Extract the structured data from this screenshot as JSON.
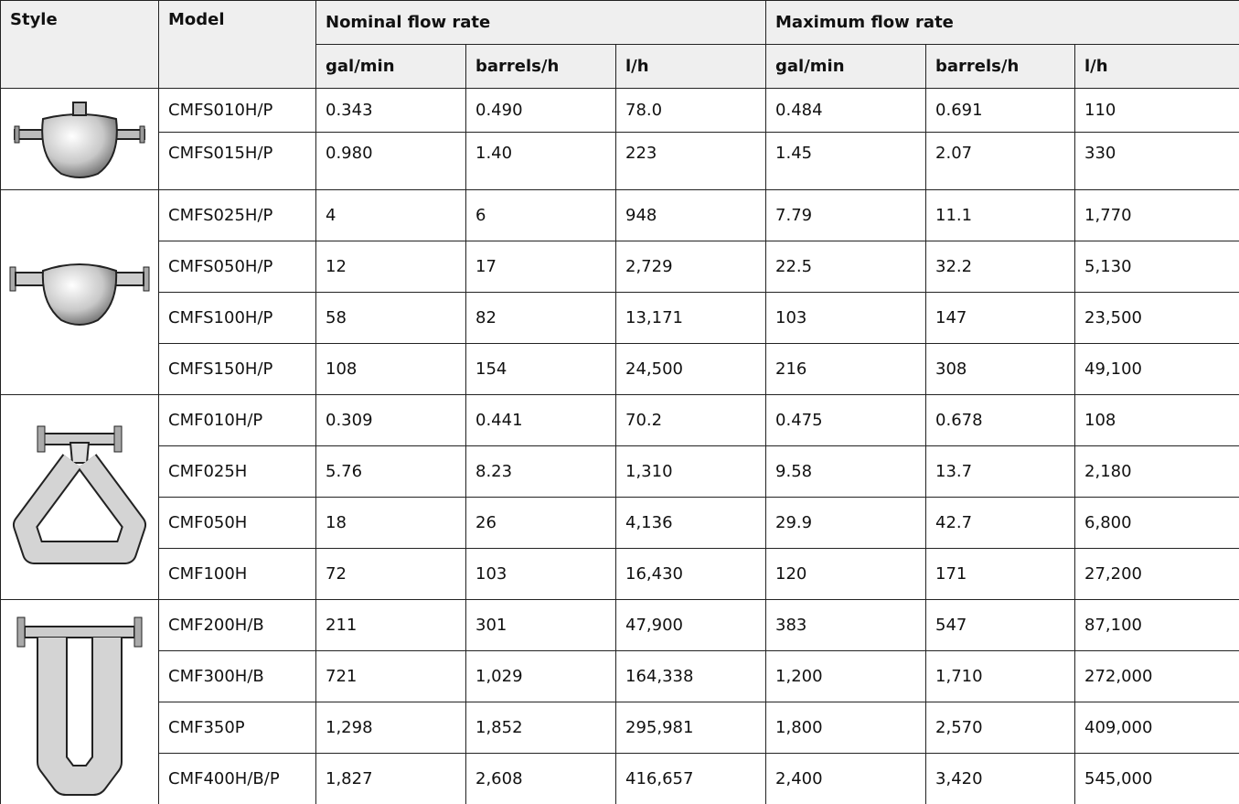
{
  "table": {
    "header": [
      "Style",
      "Model",
      "Nominal flow rate",
      "Maximum flow rate"
    ],
    "units": [
      "gal/min",
      "barrels/h",
      "l/h",
      "gal/min",
      "barrels/h",
      "l/h"
    ],
    "groups": [
      {
        "rows": [
          [
            "CMFS010H/P",
            "0.343",
            "0.490",
            "78.0",
            "0.484",
            "0.691",
            "110"
          ],
          [
            "CMFS015H/P",
            "0.980",
            "1.40",
            "223",
            "1.45",
            "2.07",
            "330"
          ]
        ]
      },
      {
        "rows": [
          [
            "CMFS025H/P",
            "4",
            "6",
            "948",
            "7.79",
            "11.1",
            "1,770"
          ],
          [
            "CMFS050H/P",
            "12",
            "17",
            "2,729",
            "22.5",
            "32.2",
            "5,130"
          ],
          [
            "CMFS100H/P",
            "58",
            "82",
            "13,171",
            "103",
            "147",
            "23,500"
          ],
          [
            "CMFS150H/P",
            "108",
            "154",
            "24,500",
            "216",
            "308",
            "49,100"
          ]
        ]
      },
      {
        "rows": [
          [
            "CMF010H/P",
            "0.309",
            "0.441",
            "70.2",
            "0.475",
            "0.678",
            "108"
          ],
          [
            "CMF025H",
            "5.76",
            "8.23",
            "1,310",
            "9.58",
            "13.7",
            "2,180"
          ],
          [
            "CMF050H",
            "18",
            "26",
            "4,136",
            "29.9",
            "42.7",
            "6,800"
          ],
          [
            "CMF100H",
            "72",
            "103",
            "16,430",
            "120",
            "171",
            "27,200"
          ]
        ]
      },
      {
        "rows": [
          [
            "CMF200H/B",
            "211",
            "301",
            "47,900",
            "383",
            "547",
            "87,100"
          ],
          [
            "CMF300H/B",
            "721",
            "1,029",
            "164,338",
            "1,200",
            "1,710",
            "272,000"
          ],
          [
            "CMF350P",
            "1,298",
            "1,852",
            "295,981",
            "1,800",
            "2,570",
            "409,000"
          ],
          [
            "CMF400H/B/P",
            "1,827",
            "2,608",
            "416,657",
            "2,400",
            "3,420",
            "545,000"
          ]
        ]
      }
    ]
  }
}
